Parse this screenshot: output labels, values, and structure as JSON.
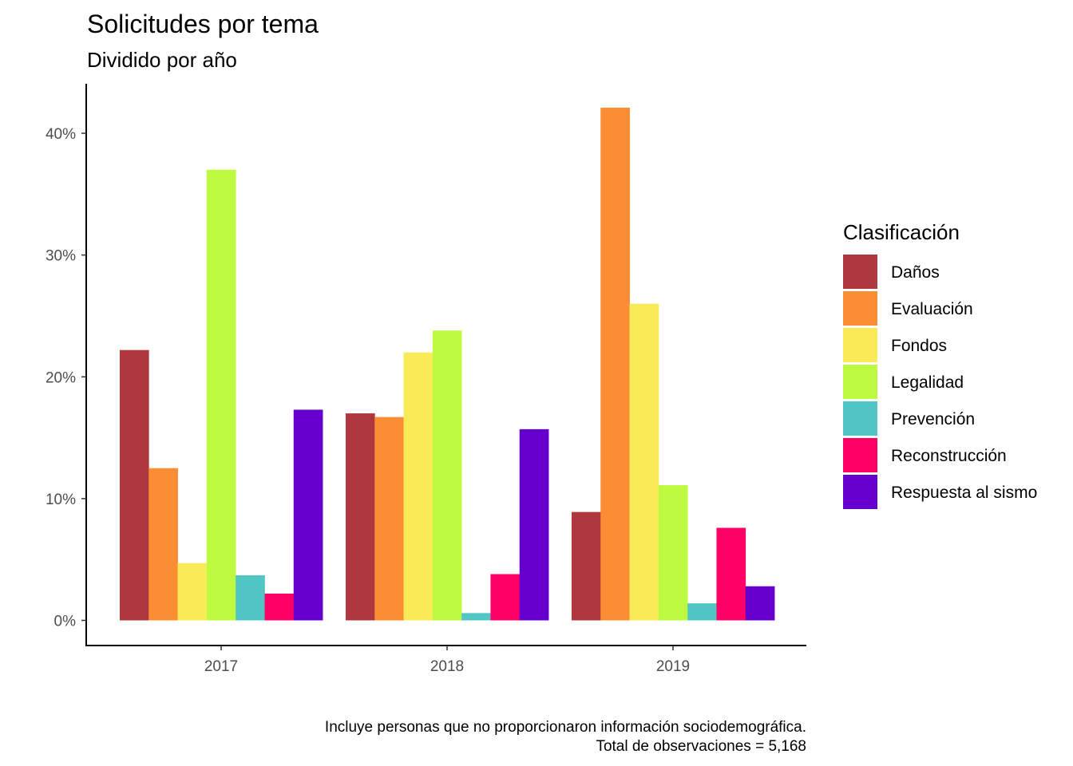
{
  "chart_data": {
    "type": "bar",
    "title": "Solicitudes por tema",
    "subtitle": "Dividido por año",
    "xlabel": "",
    "ylabel": "",
    "categories": [
      "2017",
      "2018",
      "2019"
    ],
    "ylim": [
      0,
      0.44
    ],
    "yticks": [
      0,
      0.1,
      0.2,
      0.3,
      0.4
    ],
    "ytick_labels": [
      "0%",
      "10%",
      "20%",
      "30%",
      "40%"
    ],
    "grid": false,
    "legend_title": "Clasificación",
    "legend_position": "right",
    "series": [
      {
        "name": "Daños",
        "color": "#AF383E",
        "values": [
          0.222,
          0.17,
          0.089
        ]
      },
      {
        "name": "Evaluación",
        "color": "#FB8D34",
        "values": [
          0.125,
          0.167,
          0.421
        ]
      },
      {
        "name": "Fondos",
        "color": "#F9EB57",
        "values": [
          0.047,
          0.22,
          0.26
        ]
      },
      {
        "name": "Legalidad",
        "color": "#BEFA40",
        "values": [
          0.37,
          0.238,
          0.111
        ]
      },
      {
        "name": "Prevención",
        "color": "#52C6C4",
        "values": [
          0.037,
          0.006,
          0.014
        ]
      },
      {
        "name": "Reconstrucción",
        "color": "#FF0066",
        "values": [
          0.022,
          0.038,
          0.076
        ]
      },
      {
        "name": "Respuesta al sismo",
        "color": "#6600CC",
        "values": [
          0.173,
          0.157,
          0.028
        ]
      }
    ],
    "caption_lines": [
      "Incluye personas que no proporcionaron información sociodemográfica.",
      "Total de observaciones = 5,168"
    ]
  }
}
